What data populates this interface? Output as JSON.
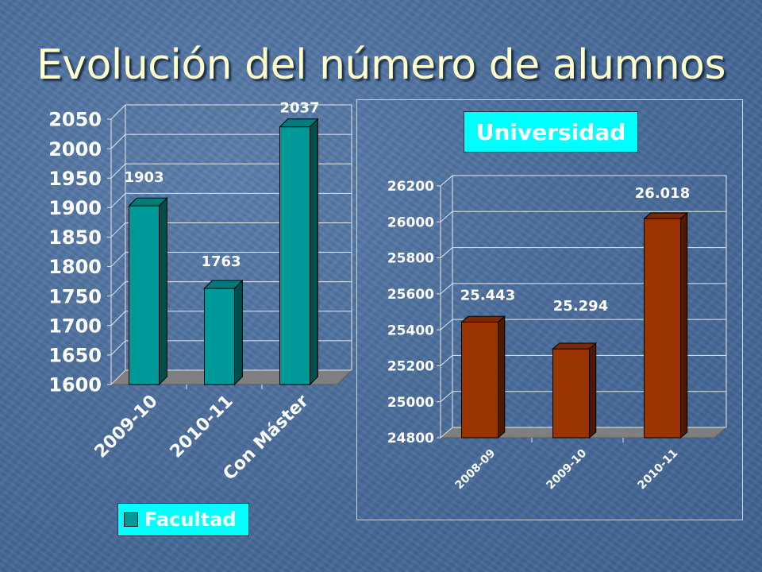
{
  "slide": {
    "title": "Evolución del número de alumnos"
  },
  "chart_data": [
    {
      "type": "bar",
      "categories": [
        "2009-10",
        "2010-11",
        "Con Máster"
      ],
      "series": [
        {
          "name": "Facultad",
          "values": [
            1903,
            1763,
            2037
          ]
        }
      ],
      "data_labels": [
        "1903",
        "1763",
        "2037"
      ],
      "yticks": [
        "1600",
        "1650",
        "1700",
        "1750",
        "1800",
        "1850",
        "1900",
        "1950",
        "2000",
        "2050"
      ],
      "ylim": [
        1600,
        2050
      ],
      "bar_color": "#009999",
      "grid": true,
      "legend": {
        "label": "Facultad",
        "position": "bottom-left",
        "background": "#00ffff"
      }
    },
    {
      "type": "bar",
      "label": "Universidad",
      "categories": [
        "2008-09",
        "2009-10",
        "2010-11"
      ],
      "values": [
        25443,
        25294,
        26018
      ],
      "data_labels": [
        "25.443",
        "25.294",
        "26.018"
      ],
      "yticks": [
        "24800",
        "25000",
        "25200",
        "25400",
        "25600",
        "25800",
        "26000",
        "26200"
      ],
      "ylim": [
        24800,
        26200
      ],
      "bar_color": "#993300",
      "grid": true
    }
  ]
}
